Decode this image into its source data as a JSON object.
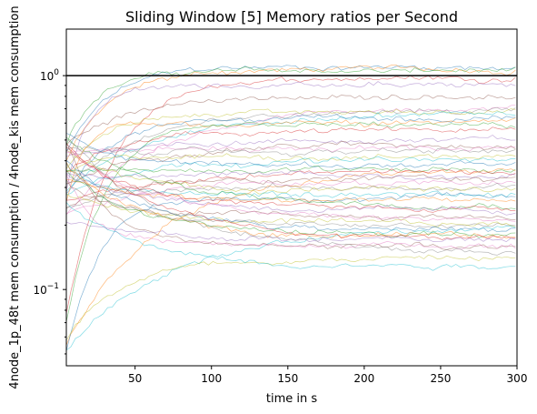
{
  "chart_data": {
    "type": "line",
    "title": "Sliding Window [5] Memory ratios per Second",
    "xlabel": "time in s",
    "ylabel": "4node_1p_48t mem consumption / 4node_kis mem consumption",
    "xlim": [
      5,
      300
    ],
    "ylim": [
      0.044,
      1.65
    ],
    "yscale": "log",
    "grid": false,
    "legend": "none",
    "xticks": [
      "50",
      "100",
      "150",
      "200",
      "250",
      "300"
    ],
    "yticks": [
      "10^0",
      "10^-1"
    ],
    "reference_line": {
      "y": 1.0,
      "color": "#000000"
    },
    "series_count": 50,
    "series_final_values": [
      1.1,
      1.07,
      1.05,
      0.98,
      0.9,
      0.8,
      0.72,
      0.7,
      0.68,
      0.66,
      0.62,
      0.6,
      0.58,
      0.55,
      0.5,
      0.48,
      0.46,
      0.44,
      0.42,
      0.4,
      0.38,
      0.37,
      0.36,
      0.35,
      0.34,
      0.33,
      0.32,
      0.3,
      0.29,
      0.28,
      0.27,
      0.26,
      0.25,
      0.24,
      0.23,
      0.22,
      0.21,
      0.2,
      0.2,
      0.19,
      0.19,
      0.18,
      0.18,
      0.17,
      0.17,
      0.16,
      0.16,
      0.15,
      0.14,
      0.13
    ],
    "palette": [
      "#1f77b4",
      "#ff7f0e",
      "#2ca02c",
      "#d62728",
      "#9467bd",
      "#8c564b",
      "#e377c2",
      "#7f7f7f",
      "#bcbd22",
      "#17becf"
    ]
  }
}
